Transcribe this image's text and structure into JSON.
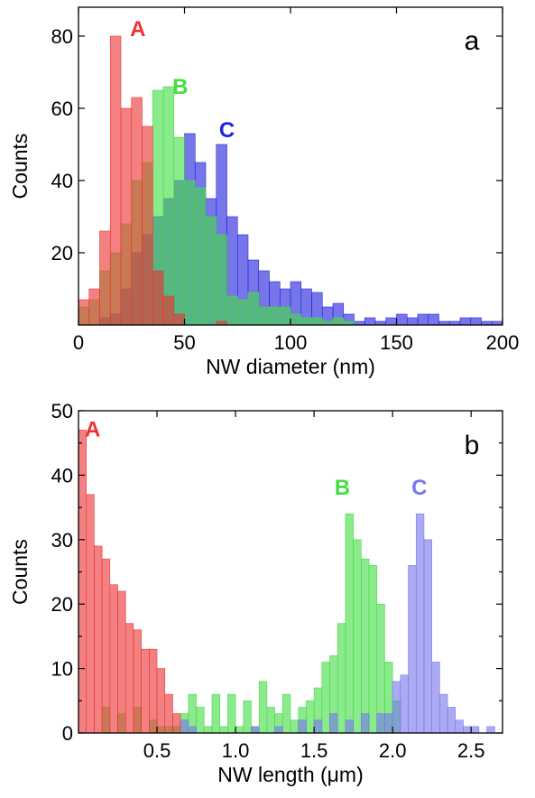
{
  "chart_data": [
    {
      "type": "bar",
      "panel_label": "a",
      "xlabel": "NW diameter (nm)",
      "ylabel": "Counts",
      "xlim": [
        0,
        200
      ],
      "ylim": [
        0,
        88
      ],
      "xticks": [
        0,
        50,
        100,
        150,
        200
      ],
      "yticks": [
        20,
        40,
        60,
        80
      ],
      "bin_width": 5,
      "grid": false,
      "legend": "none",
      "series": [
        {
          "name": "C",
          "color": "#2222dd",
          "label_at": [
            70,
            52
          ],
          "bins": [
            [
              10,
              2
            ],
            [
              15,
              3
            ],
            [
              20,
              10
            ],
            [
              25,
              20
            ],
            [
              30,
              25
            ],
            [
              35,
              30
            ],
            [
              40,
              35
            ],
            [
              45,
              40
            ],
            [
              50,
              53
            ],
            [
              55,
              45
            ],
            [
              60,
              35
            ],
            [
              65,
              50
            ],
            [
              70,
              30
            ],
            [
              75,
              25
            ],
            [
              80,
              18
            ],
            [
              85,
              15
            ],
            [
              90,
              12
            ],
            [
              95,
              10
            ],
            [
              100,
              12
            ],
            [
              105,
              10
            ],
            [
              110,
              9
            ],
            [
              115,
              5
            ],
            [
              120,
              6
            ],
            [
              125,
              3
            ],
            [
              130,
              1
            ],
            [
              135,
              2
            ],
            [
              140,
              1
            ],
            [
              145,
              2
            ],
            [
              150,
              3
            ],
            [
              155,
              2
            ],
            [
              160,
              3
            ],
            [
              165,
              3
            ],
            [
              170,
              1
            ],
            [
              175,
              1
            ],
            [
              180,
              2
            ],
            [
              185,
              2
            ],
            [
              190,
              1
            ],
            [
              195,
              1
            ]
          ]
        },
        {
          "name": "B",
          "color": "#44dd44",
          "label_at": [
            48,
            64
          ],
          "bins": [
            [
              0,
              5
            ],
            [
              5,
              7
            ],
            [
              10,
              15
            ],
            [
              15,
              20
            ],
            [
              20,
              28
            ],
            [
              25,
              40
            ],
            [
              30,
              45
            ],
            [
              35,
              65
            ],
            [
              40,
              66
            ],
            [
              45,
              52
            ],
            [
              50,
              40
            ],
            [
              55,
              38
            ],
            [
              60,
              30
            ],
            [
              65,
              25
            ],
            [
              70,
              8
            ],
            [
              75,
              7
            ],
            [
              80,
              9
            ],
            [
              85,
              5
            ],
            [
              90,
              5
            ],
            [
              95,
              5
            ],
            [
              100,
              3
            ],
            [
              105,
              2
            ],
            [
              110,
              2
            ],
            [
              115,
              1
            ],
            [
              120,
              2
            ],
            [
              125,
              1
            ]
          ]
        },
        {
          "name": "A",
          "color": "#ee3333",
          "label_at": [
            28,
            80
          ],
          "bins": [
            [
              0,
              7
            ],
            [
              5,
              10
            ],
            [
              10,
              26
            ],
            [
              15,
              80
            ],
            [
              20,
              60
            ],
            [
              25,
              63
            ],
            [
              30,
              55
            ],
            [
              35,
              15
            ],
            [
              40,
              8
            ],
            [
              45,
              3
            ],
            [
              65,
              1
            ]
          ]
        }
      ]
    },
    {
      "type": "bar",
      "panel_label": "b",
      "xlabel": "NW length (μm)",
      "ylabel": "Counts",
      "xlim": [
        0,
        2.7
      ],
      "ylim": [
        0,
        50
      ],
      "xticks": [
        0.5,
        1.0,
        1.5,
        2.0,
        2.5
      ],
      "yticks": [
        0,
        5,
        10,
        15,
        20,
        25,
        30,
        35,
        40,
        45,
        50
      ],
      "ytick_labels": [
        0,
        10,
        20,
        30,
        40,
        50
      ],
      "bin_width": 0.05,
      "grid": false,
      "legend": "none",
      "series": [
        {
          "name": "B",
          "color": "#44dd44",
          "label_at": [
            1.68,
            37
          ],
          "bins": [
            [
              0.15,
              4
            ],
            [
              0.25,
              3
            ],
            [
              0.35,
              4
            ],
            [
              0.45,
              2
            ],
            [
              0.5,
              1
            ],
            [
              0.55,
              1
            ],
            [
              0.6,
              1
            ],
            [
              0.65,
              3
            ],
            [
              0.7,
              6
            ],
            [
              0.75,
              4
            ],
            [
              0.8,
              1
            ],
            [
              0.85,
              6
            ],
            [
              0.9,
              1
            ],
            [
              0.95,
              6
            ],
            [
              1.0,
              1
            ],
            [
              1.05,
              5
            ],
            [
              1.1,
              1
            ],
            [
              1.15,
              8
            ],
            [
              1.2,
              4
            ],
            [
              1.25,
              3
            ],
            [
              1.3,
              6
            ],
            [
              1.35,
              2
            ],
            [
              1.4,
              4
            ],
            [
              1.45,
              5
            ],
            [
              1.5,
              7
            ],
            [
              1.55,
              11
            ],
            [
              1.6,
              12
            ],
            [
              1.65,
              17
            ],
            [
              1.7,
              34
            ],
            [
              1.75,
              30
            ],
            [
              1.8,
              27
            ],
            [
              1.85,
              26
            ],
            [
              1.9,
              20
            ],
            [
              1.95,
              11
            ],
            [
              2.0,
              5
            ]
          ]
        },
        {
          "name": "C",
          "color": "#7777ee",
          "label_at": [
            2.17,
            37
          ],
          "bins": [
            [
              0.65,
              2
            ],
            [
              0.7,
              1
            ],
            [
              1.1,
              1
            ],
            [
              1.25,
              1
            ],
            [
              1.4,
              2
            ],
            [
              1.5,
              2
            ],
            [
              1.6,
              3
            ],
            [
              1.7,
              2
            ],
            [
              1.8,
              3
            ],
            [
              1.9,
              3
            ],
            [
              1.95,
              3
            ],
            [
              2.0,
              8
            ],
            [
              2.05,
              9
            ],
            [
              2.1,
              26
            ],
            [
              2.15,
              34
            ],
            [
              2.2,
              30
            ],
            [
              2.25,
              11
            ],
            [
              2.3,
              6
            ],
            [
              2.35,
              4
            ],
            [
              2.4,
              2
            ],
            [
              2.45,
              1
            ],
            [
              2.5,
              1
            ],
            [
              2.6,
              1
            ]
          ]
        },
        {
          "name": "A",
          "color": "#ee3333",
          "label_at": [
            0.09,
            46
          ],
          "bins": [
            [
              0.0,
              47
            ],
            [
              0.05,
              37
            ],
            [
              0.1,
              29
            ],
            [
              0.15,
              27
            ],
            [
              0.2,
              23
            ],
            [
              0.25,
              22
            ],
            [
              0.3,
              17
            ],
            [
              0.35,
              16
            ],
            [
              0.4,
              13
            ],
            [
              0.45,
              13
            ],
            [
              0.5,
              10
            ],
            [
              0.55,
              6
            ],
            [
              0.6,
              3
            ]
          ]
        }
      ]
    }
  ]
}
